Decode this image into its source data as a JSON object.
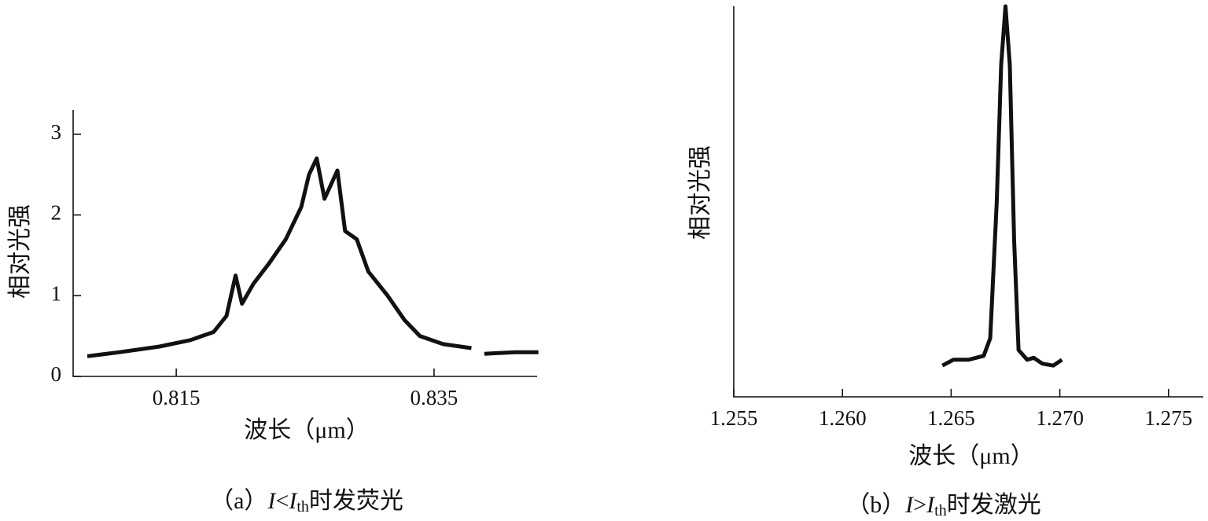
{
  "chart_data": [
    {
      "type": "line",
      "x_label": "波长（μm）",
      "y_label": "相对光强",
      "caption": [
        "（a）",
        "I",
        "<",
        "I",
        "th",
        "时发荧光"
      ],
      "color": "#111111",
      "x": [
        0.8081,
        0.8106,
        0.8137,
        0.8161,
        0.8179,
        0.8189,
        0.8196,
        0.8201,
        0.821,
        0.8222,
        0.8235,
        0.8247,
        0.8253,
        0.8259,
        0.8265,
        0.8275,
        0.8281,
        0.829,
        0.8299,
        0.8314,
        0.8327,
        0.8339,
        0.8357,
        0.8379,
        0.8384,
        0.8389,
        0.8413,
        0.8431
      ],
      "values": [
        0.25,
        0.3,
        0.37,
        0.45,
        0.55,
        0.75,
        1.25,
        0.9,
        1.15,
        1.4,
        1.7,
        2.1,
        2.5,
        2.7,
        2.2,
        2.55,
        1.8,
        1.7,
        1.3,
        1.0,
        0.7,
        0.5,
        0.4,
        0.35,
        null,
        0.28,
        0.3,
        0.3
      ],
      "xlim": [
        0.807,
        0.843
      ],
      "ylim": [
        0,
        3.3
      ],
      "xticks": [
        0.815,
        0.835
      ],
      "yticks": [
        0,
        1,
        2,
        3
      ]
    },
    {
      "type": "line",
      "x_label": "波长（μm）",
      "y_label": "相对光强",
      "caption": [
        "（b）",
        "I",
        ">",
        "I",
        "th",
        "时发激光"
      ],
      "color": "#111111",
      "x": [
        1.2646,
        1.2651,
        1.2658,
        1.2665,
        1.2668,
        1.2671,
        1.2673,
        1.2675,
        1.2677,
        1.2679,
        1.2681,
        1.2685,
        1.2688,
        1.2692,
        1.2697,
        1.2701
      ],
      "values": [
        0.08,
        0.095,
        0.095,
        0.105,
        0.15,
        0.5,
        0.85,
        1.0,
        0.85,
        0.4,
        0.12,
        0.095,
        0.1,
        0.085,
        0.08,
        0.095
      ],
      "xlim": [
        1.255,
        1.2766
      ],
      "ylim": [
        0,
        1
      ],
      "xticks": [
        1.255,
        {
          "value": 1.26,
          "label": "1.260"
        },
        1.265,
        {
          "value": 1.27,
          "label": "1.270"
        },
        1.275
      ]
    }
  ]
}
